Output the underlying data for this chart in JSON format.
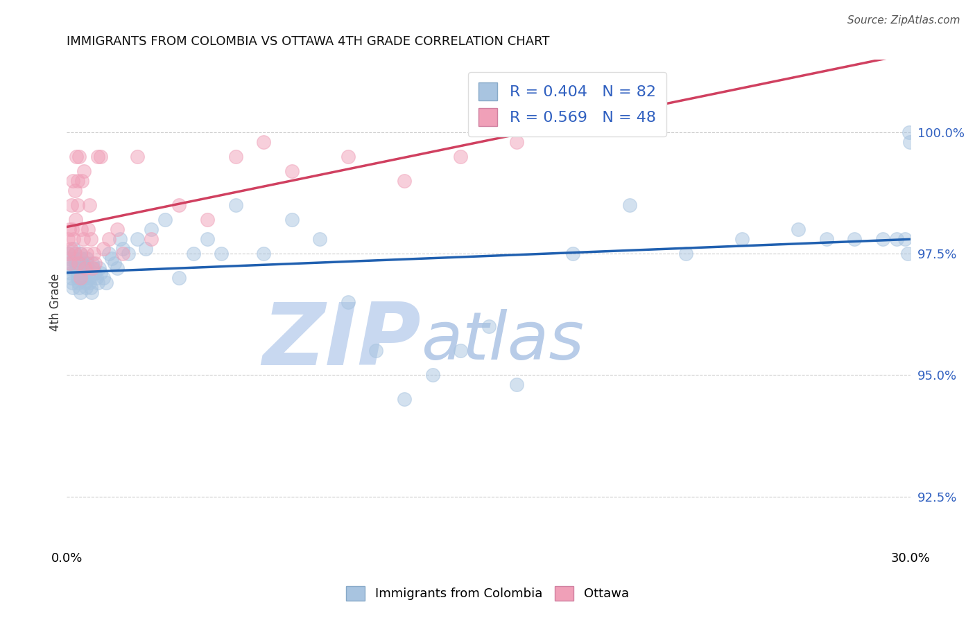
{
  "title": "IMMIGRANTS FROM COLOMBIA VS OTTAWA 4TH GRADE CORRELATION CHART",
  "source": "Source: ZipAtlas.com",
  "ylabel": "4th Grade",
  "xlim": [
    0.0,
    30.0
  ],
  "ylim": [
    91.5,
    101.5
  ],
  "yticks": [
    92.5,
    95.0,
    97.5,
    100.0
  ],
  "ytick_labels": [
    "92.5%",
    "95.0%",
    "97.5%",
    "100.0%"
  ],
  "blue_R": 0.404,
  "blue_N": 82,
  "pink_R": 0.569,
  "pink_N": 48,
  "blue_color": "#a8c4e0",
  "blue_line_color": "#2060b0",
  "pink_color": "#f0a0b8",
  "pink_line_color": "#d04060",
  "legend_label_blue": "Immigrants from Colombia",
  "legend_label_pink": "Ottawa",
  "watermark_zip": "ZIP",
  "watermark_atlas": "atlas",
  "watermark_color_zip": "#c8d8f0",
  "watermark_color_atlas": "#b8cce8",
  "blue_x": [
    0.05,
    0.08,
    0.1,
    0.12,
    0.15,
    0.18,
    0.2,
    0.22,
    0.25,
    0.28,
    0.3,
    0.32,
    0.35,
    0.38,
    0.4,
    0.42,
    0.45,
    0.48,
    0.5,
    0.52,
    0.55,
    0.58,
    0.6,
    0.62,
    0.65,
    0.68,
    0.7,
    0.72,
    0.75,
    0.78,
    0.8,
    0.82,
    0.85,
    0.88,
    0.9,
    0.95,
    1.0,
    1.05,
    1.1,
    1.15,
    1.2,
    1.3,
    1.4,
    1.5,
    1.6,
    1.7,
    1.8,
    1.9,
    2.0,
    2.2,
    2.5,
    2.8,
    3.0,
    3.5,
    4.0,
    4.5,
    5.0,
    5.5,
    6.0,
    7.0,
    8.0,
    9.0,
    10.0,
    11.0,
    12.0,
    13.0,
    14.0,
    15.0,
    16.0,
    18.0,
    20.0,
    22.0,
    24.0,
    26.0,
    27.0,
    28.0,
    29.0,
    29.5,
    29.8,
    29.9,
    29.95,
    29.98
  ],
  "blue_y": [
    97.5,
    97.4,
    97.3,
    97.2,
    97.1,
    97.0,
    96.9,
    96.8,
    97.6,
    97.5,
    97.4,
    97.3,
    97.2,
    97.1,
    97.0,
    96.9,
    96.8,
    96.7,
    97.5,
    97.4,
    97.3,
    97.2,
    97.1,
    97.0,
    96.9,
    96.8,
    97.4,
    97.3,
    97.2,
    97.1,
    97.0,
    96.9,
    96.8,
    96.7,
    97.3,
    97.2,
    97.1,
    97.0,
    96.9,
    97.2,
    97.1,
    97.0,
    96.9,
    97.5,
    97.4,
    97.3,
    97.2,
    97.8,
    97.6,
    97.5,
    97.8,
    97.6,
    98.0,
    98.2,
    97.0,
    97.5,
    97.8,
    97.5,
    98.5,
    97.5,
    98.2,
    97.8,
    96.5,
    95.5,
    94.5,
    95.0,
    95.5,
    96.0,
    94.8,
    97.5,
    98.5,
    97.5,
    97.8,
    98.0,
    97.8,
    97.8,
    97.8,
    97.8,
    97.8,
    97.5,
    100.0,
    99.8
  ],
  "pink_x": [
    0.05,
    0.08,
    0.1,
    0.12,
    0.15,
    0.18,
    0.2,
    0.22,
    0.25,
    0.28,
    0.3,
    0.32,
    0.35,
    0.38,
    0.4,
    0.42,
    0.45,
    0.48,
    0.5,
    0.52,
    0.55,
    0.58,
    0.6,
    0.65,
    0.7,
    0.75,
    0.8,
    0.85,
    0.9,
    0.95,
    1.0,
    1.1,
    1.2,
    1.3,
    1.5,
    1.8,
    2.0,
    2.5,
    3.0,
    4.0,
    5.0,
    6.0,
    7.0,
    8.0,
    10.0,
    12.0,
    14.0,
    16.0
  ],
  "pink_y": [
    97.8,
    97.5,
    98.0,
    97.3,
    97.6,
    98.5,
    98.0,
    99.0,
    97.8,
    98.8,
    97.5,
    98.2,
    99.5,
    98.5,
    99.0,
    97.3,
    99.5,
    97.0,
    97.5,
    98.0,
    99.0,
    97.8,
    99.2,
    97.2,
    97.5,
    98.0,
    98.5,
    97.8,
    97.2,
    97.5,
    97.3,
    99.5,
    99.5,
    97.6,
    97.8,
    98.0,
    97.5,
    99.5,
    97.8,
    98.5,
    98.2,
    99.5,
    99.8,
    99.2,
    99.5,
    99.0,
    99.5,
    99.8
  ]
}
